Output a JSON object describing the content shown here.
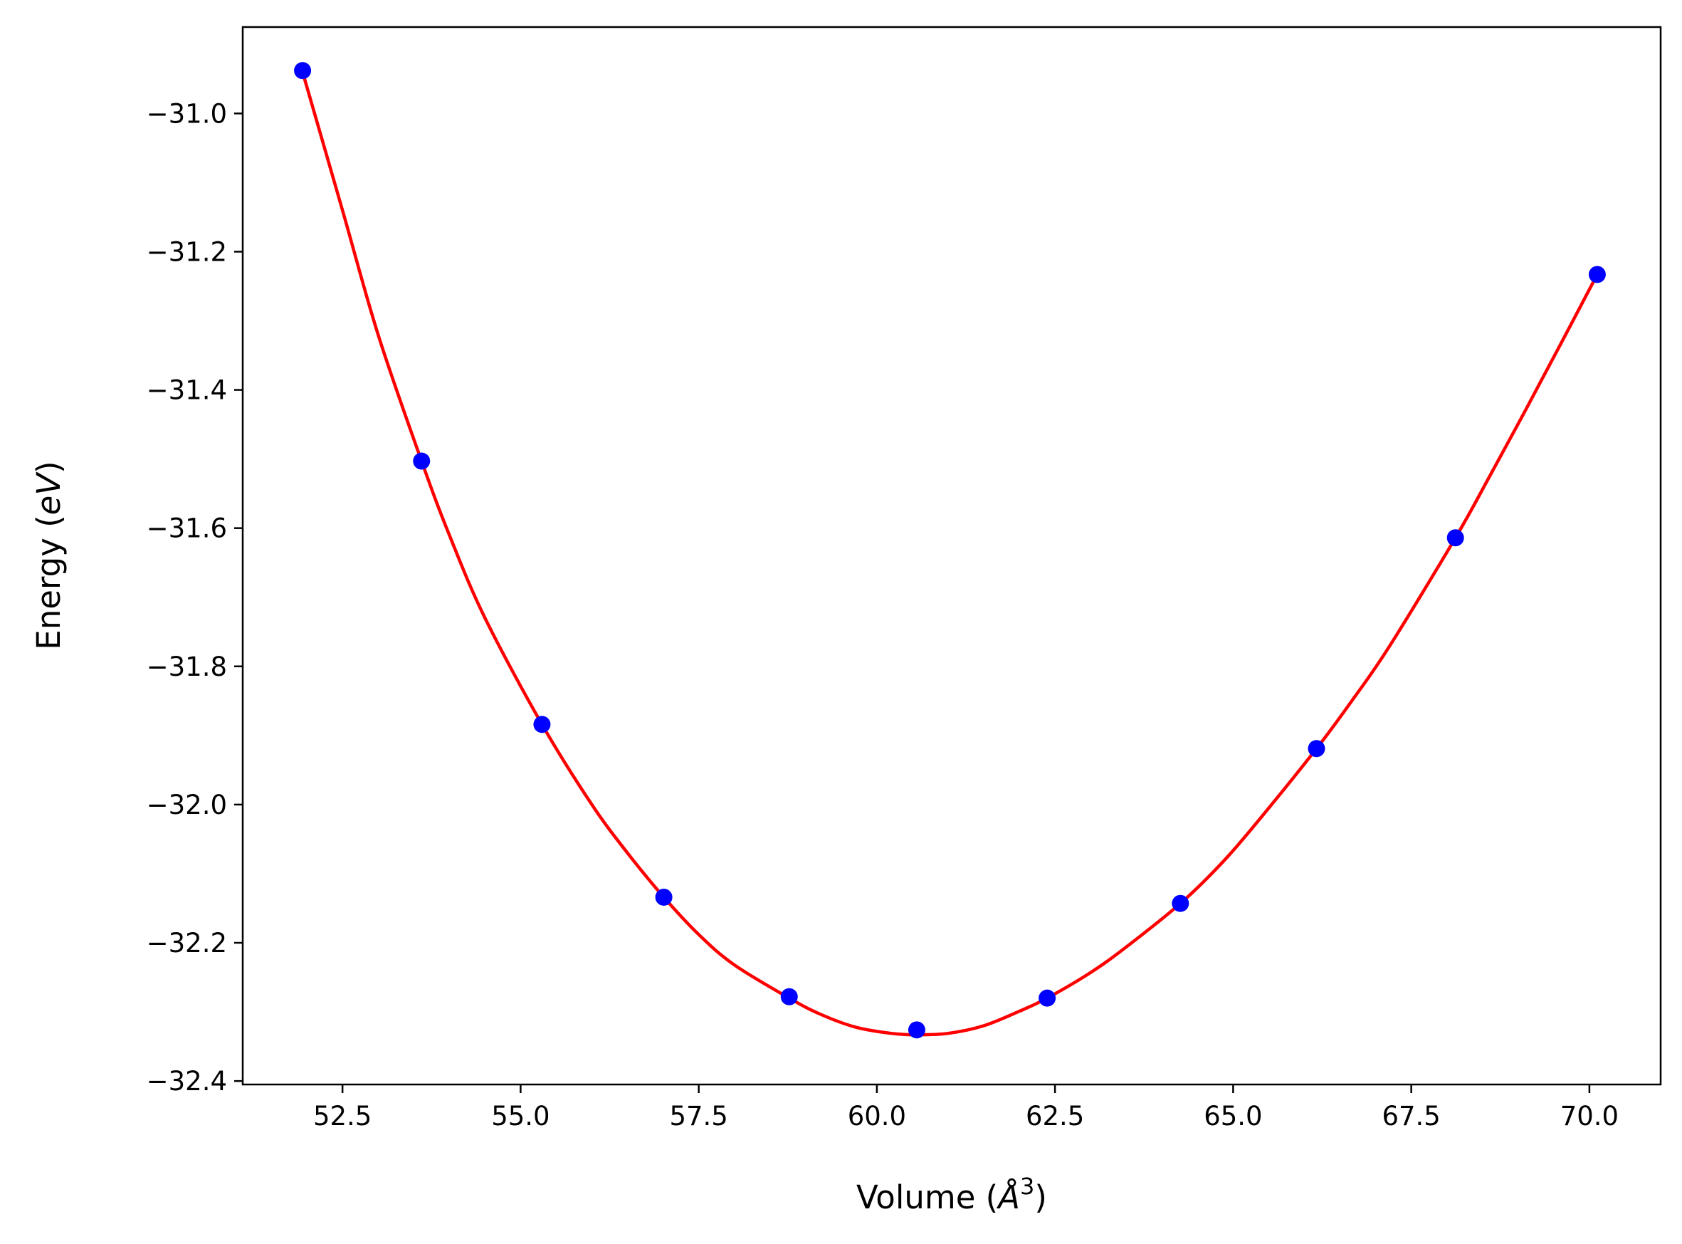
{
  "chart_data": {
    "type": "scatter",
    "title": "",
    "xlabel_main": "Volume (",
    "xlabel_symbol": "Å",
    "xlabel_exp": "3",
    "xlabel_close": ")",
    "ylabel_main": "Energy (",
    "ylabel_symbol": "eV",
    "ylabel_close": ")",
    "xlim": [
      51.1,
      71.0
    ],
    "ylim": [
      -32.405,
      -30.875
    ],
    "x_ticks": [
      52.5,
      55.0,
      57.5,
      60.0,
      62.5,
      65.0,
      67.5,
      70.0
    ],
    "x_tick_labels": [
      "52.5",
      "55.0",
      "57.5",
      "60.0",
      "62.5",
      "65.0",
      "67.5",
      "70.0"
    ],
    "y_ticks": [
      -31.0,
      -31.2,
      -31.4,
      -31.6,
      -31.8,
      -32.0,
      -32.2,
      -32.4
    ],
    "y_tick_labels": [
      "−31.0",
      "−31.2",
      "−31.4",
      "−31.6",
      "−31.8",
      "−32.0",
      "−32.2",
      "−32.4"
    ],
    "grid": false,
    "series": [
      {
        "kind": "points",
        "color": "#0000ff",
        "x": [
          51.94,
          53.61,
          55.3,
          57.01,
          58.77,
          60.56,
          62.39,
          64.26,
          66.17,
          68.12,
          70.11
        ],
        "y": [
          -30.938,
          -31.503,
          -31.884,
          -32.134,
          -32.278,
          -32.326,
          -32.28,
          -32.143,
          -31.919,
          -31.614,
          -31.233
        ]
      },
      {
        "kind": "fit-curve",
        "color": "#ff0000",
        "x": [
          51.94,
          52.5,
          53.0,
          53.61,
          54.0,
          54.5,
          55.3,
          56.0,
          56.5,
          57.01,
          57.5,
          58.0,
          58.77,
          59.2,
          59.7,
          60.2,
          60.56,
          61.0,
          61.5,
          62.0,
          62.39,
          63.0,
          63.5,
          64.26,
          64.8,
          65.3,
          66.17,
          66.7,
          67.2,
          68.12,
          68.6,
          69.1,
          69.6,
          70.11
        ],
        "y": [
          -30.94,
          -31.14,
          -31.32,
          -31.503,
          -31.61,
          -31.73,
          -31.884,
          -32.0,
          -32.07,
          -32.134,
          -32.188,
          -32.232,
          -32.28,
          -32.303,
          -32.322,
          -32.331,
          -32.333,
          -32.331,
          -32.32,
          -32.299,
          -32.28,
          -32.243,
          -32.206,
          -32.143,
          -32.089,
          -32.03,
          -31.919,
          -31.845,
          -31.77,
          -31.614,
          -31.525,
          -31.43,
          -31.333,
          -31.233
        ]
      }
    ]
  }
}
